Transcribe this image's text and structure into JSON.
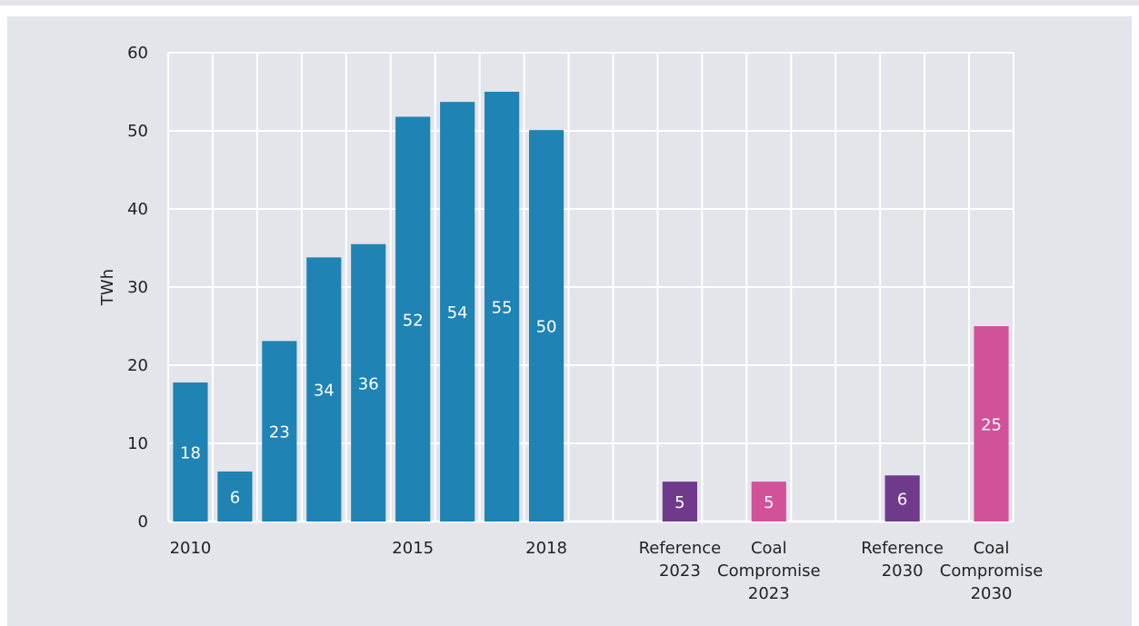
{
  "chart_data": {
    "type": "bar",
    "categories": [
      "2010",
      "",
      "",
      "",
      "",
      "2015",
      "",
      "",
      "2018",
      "",
      "",
      "Reference 2023",
      "",
      "Coal Compromise 2023",
      "",
      "",
      "Reference 2030",
      "",
      "Coal Compromise 2030"
    ],
    "category_lines": [
      [
        "2010"
      ],
      [],
      [],
      [],
      [],
      [
        "2015"
      ],
      [],
      [],
      [
        "2018"
      ],
      [],
      [],
      [
        "Reference",
        "2023"
      ],
      [],
      [
        "Coal",
        "Compromise",
        "2023"
      ],
      [],
      [],
      [
        "Reference",
        "2030"
      ],
      [],
      [
        "Coal",
        "Compromise",
        "2030"
      ]
    ],
    "values": [
      17.8,
      6.4,
      23.1,
      33.8,
      35.5,
      51.8,
      53.7,
      55.0,
      50.1,
      null,
      null,
      5.1,
      null,
      5.1,
      null,
      null,
      5.9,
      null,
      25.0
    ],
    "data_labels": [
      "18",
      "6",
      "23",
      "34",
      "36",
      "52",
      "54",
      "55",
      "50",
      "",
      "",
      "5",
      "",
      "5",
      "",
      "",
      "6",
      "",
      "25"
    ],
    "label_offsets": [
      0.5,
      0.5,
      0.5,
      0.5,
      0.5,
      0.5,
      0.5,
      0.5,
      0.5,
      0.5,
      0.5,
      0.5,
      0.5,
      0.5,
      0.5,
      0.5,
      0.5,
      0.5,
      0.5
    ],
    "colors": [
      "#1f83b4",
      "#1f83b4",
      "#1f83b4",
      "#1f83b4",
      "#1f83b4",
      "#1f83b4",
      "#1f83b4",
      "#1f83b4",
      "#1f83b4",
      "#1f83b4",
      "#1f83b4",
      "#6f3a8c",
      "#1f83b4",
      "#d2529a",
      "#1f83b4",
      "#1f83b4",
      "#6f3a8c",
      "#1f83b4",
      "#d2529a"
    ],
    "ylabel": "TWh",
    "ylim": [
      0,
      60
    ],
    "yticks": [
      0,
      10,
      20,
      30,
      40,
      50,
      60
    ],
    "grid": true
  }
}
